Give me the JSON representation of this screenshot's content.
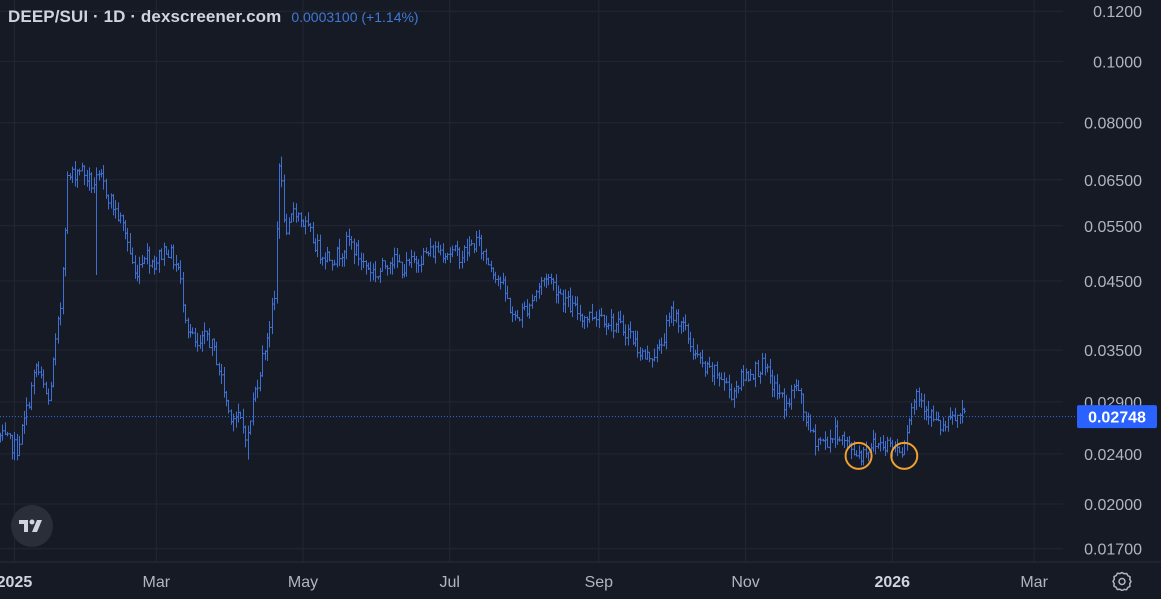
{
  "header": {
    "symbol": "DEEP/SUI · 1D · dexscreener.com",
    "price": "0.0003100 (+1.14%)"
  },
  "colors": {
    "background": "#161a25",
    "grid": "#232734",
    "candle": "#3f6fd0",
    "candle_dim": "#7d8190",
    "price_line": "#2f6ee0",
    "price_tag": "#2962ff",
    "marker": "#f0a030"
  },
  "icons": {
    "logo": "tradingview-logo-icon",
    "settings": "gear-icon"
  },
  "chart_data": {
    "type": "ohlc",
    "title": "DEEP/SUI · 1D · dexscreener.com",
    "interval": "1D",
    "y_scale": "log",
    "ylim": [
      0.0162,
      0.125
    ],
    "xlim": [
      "2024-12-26",
      "2026-03-13"
    ],
    "y_ticks": [
      "0.1200",
      "0.1000",
      "0.08000",
      "0.06500",
      "0.05500",
      "0.04500",
      "0.03500",
      "0.02900",
      "0.02400",
      "0.02000",
      "0.01700"
    ],
    "x_ticks": [
      {
        "date": "2025-01-01",
        "label": "2025",
        "bold": true
      },
      {
        "date": "2025-03-01",
        "label": "Mar",
        "bold": false
      },
      {
        "date": "2025-05-01",
        "label": "May",
        "bold": false
      },
      {
        "date": "2025-07-01",
        "label": "Jul",
        "bold": false
      },
      {
        "date": "2025-09-01",
        "label": "Sep",
        "bold": false
      },
      {
        "date": "2025-11-01",
        "label": "Nov",
        "bold": false
      },
      {
        "date": "2026-01-01",
        "label": "2026",
        "bold": true
      },
      {
        "date": "2026-03-01",
        "label": "Mar",
        "bold": false
      }
    ],
    "last_price": 0.02748,
    "last_price_label": "0.02748",
    "grid": true,
    "path": [
      [
        "2024-12-26",
        0.0255
      ],
      [
        "2025-01-02",
        0.0245
      ],
      [
        "2025-01-05",
        0.027
      ],
      [
        "2025-01-10",
        0.033
      ],
      [
        "2025-01-15",
        0.029
      ],
      [
        "2025-01-20",
        0.041
      ],
      [
        "2025-01-23",
        0.065
      ],
      [
        "2025-01-28",
        0.068
      ],
      [
        "2025-02-02",
        0.064
      ],
      [
        "2025-02-06",
        0.065
      ],
      [
        "2025-02-12",
        0.058
      ],
      [
        "2025-02-16",
        0.054
      ],
      [
        "2025-02-20",
        0.046
      ],
      [
        "2025-02-24",
        0.05
      ],
      [
        "2025-02-28",
        0.048
      ],
      [
        "2025-03-05",
        0.051
      ],
      [
        "2025-03-10",
        0.047
      ],
      [
        "2025-03-14",
        0.038
      ],
      [
        "2025-03-18",
        0.035
      ],
      [
        "2025-03-22",
        0.037
      ],
      [
        "2025-03-26",
        0.034
      ],
      [
        "2025-03-31",
        0.028
      ],
      [
        "2025-04-05",
        0.027
      ],
      [
        "2025-04-08",
        0.0255
      ],
      [
        "2025-04-10",
        0.029
      ],
      [
        "2025-04-14",
        0.034
      ],
      [
        "2025-04-19",
        0.042
      ],
      [
        "2025-04-21",
        0.07
      ],
      [
        "2025-04-24",
        0.052
      ],
      [
        "2025-04-27",
        0.059
      ],
      [
        "2025-05-03",
        0.054
      ],
      [
        "2025-05-08",
        0.05
      ],
      [
        "2025-05-14",
        0.049
      ],
      [
        "2025-05-20",
        0.052
      ],
      [
        "2025-05-26",
        0.048
      ],
      [
        "2025-06-01",
        0.046
      ],
      [
        "2025-06-06",
        0.049
      ],
      [
        "2025-06-12",
        0.047
      ],
      [
        "2025-06-18",
        0.049
      ],
      [
        "2025-06-26",
        0.0505
      ],
      [
        "2025-07-06",
        0.0495
      ],
      [
        "2025-07-12",
        0.052
      ],
      [
        "2025-07-16",
        0.049
      ],
      [
        "2025-07-22",
        0.045
      ],
      [
        "2025-07-28",
        0.039
      ],
      [
        "2025-08-02",
        0.041
      ],
      [
        "2025-08-07",
        0.044
      ],
      [
        "2025-08-10",
        0.046
      ],
      [
        "2025-08-14",
        0.044
      ],
      [
        "2025-08-20",
        0.041
      ],
      [
        "2025-08-26",
        0.0395
      ],
      [
        "2025-09-01",
        0.04
      ],
      [
        "2025-09-07",
        0.0385
      ],
      [
        "2025-09-13",
        0.0375
      ],
      [
        "2025-09-20",
        0.034
      ],
      [
        "2025-09-26",
        0.035
      ],
      [
        "2025-10-01",
        0.04
      ],
      [
        "2025-10-05",
        0.039
      ],
      [
        "2025-10-10",
        0.035
      ],
      [
        "2025-10-15",
        0.0325
      ],
      [
        "2025-10-21",
        0.032
      ],
      [
        "2025-10-26",
        0.03
      ],
      [
        "2025-10-30",
        0.0315
      ],
      [
        "2025-11-04",
        0.0325
      ],
      [
        "2025-11-08",
        0.033
      ],
      [
        "2025-11-13",
        0.0305
      ],
      [
        "2025-11-18",
        0.0285
      ],
      [
        "2025-11-22",
        0.031
      ],
      [
        "2025-11-25",
        0.028
      ],
      [
        "2025-11-29",
        0.0255
      ],
      [
        "2025-12-04",
        0.025
      ],
      [
        "2025-12-09",
        0.026
      ],
      [
        "2025-12-14",
        0.0245
      ],
      [
        "2025-12-19",
        0.024
      ],
      [
        "2025-12-23",
        0.0248
      ],
      [
        "2025-12-28",
        0.025
      ],
      [
        "2026-01-01",
        0.0248
      ],
      [
        "2026-01-05",
        0.0245
      ],
      [
        "2026-01-08",
        0.0275
      ],
      [
        "2026-01-11",
        0.03
      ],
      [
        "2026-01-15",
        0.0285
      ],
      [
        "2026-01-19",
        0.0268
      ],
      [
        "2026-01-22",
        0.0263
      ],
      [
        "2026-01-26",
        0.0272
      ],
      [
        "2026-01-31",
        0.0275
      ]
    ],
    "spikes": [
      {
        "date": "2025-02-04",
        "low": 0.046
      },
      {
        "date": "2025-04-08",
        "low": 0.0235
      }
    ],
    "markers": [
      {
        "date": "2025-12-18",
        "value": 0.024
      },
      {
        "date": "2026-01-06",
        "value": 0.024
      }
    ]
  }
}
